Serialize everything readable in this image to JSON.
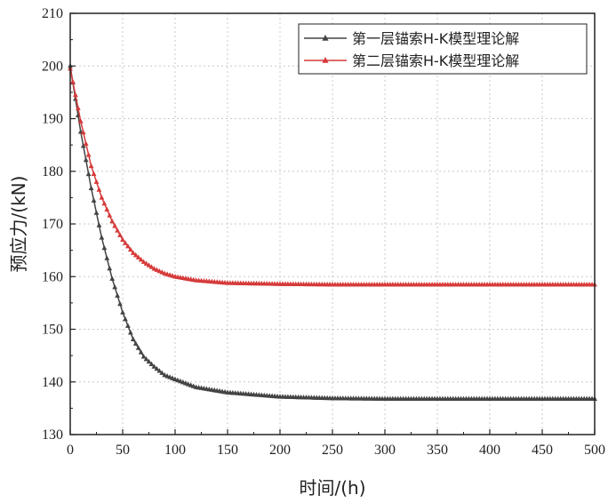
{
  "chart_data": {
    "type": "line",
    "xlabel": "时间/(h)",
    "ylabel": "预应力/(kN)",
    "xlim": [
      0,
      500
    ],
    "ylim": [
      130,
      210
    ],
    "xticks": [
      0,
      50,
      100,
      150,
      200,
      250,
      300,
      350,
      400,
      450,
      500
    ],
    "yticks": [
      130,
      140,
      150,
      160,
      170,
      180,
      190,
      200,
      210
    ],
    "grid": true,
    "legend_position": "top-right",
    "series": [
      {
        "name": "第一层锚索H-K模型理论解",
        "color": "#444444",
        "marker": "triangle",
        "x": [
          0,
          10,
          20,
          30,
          40,
          50,
          60,
          70,
          80,
          90,
          100,
          120,
          150,
          200,
          250,
          300,
          350,
          400,
          450,
          500
        ],
        "values": [
          200,
          187.5,
          176.8,
          167.4,
          159.6,
          153.2,
          148.1,
          144.8,
          142.9,
          141.3,
          140.5,
          139.0,
          138.0,
          137.2,
          136.9,
          136.8,
          136.8,
          136.8,
          136.8,
          136.8
        ]
      },
      {
        "name": "第二层锚索H-K模型理论解",
        "color": "#d63a3a",
        "marker": "triangle",
        "x": [
          0,
          10,
          20,
          30,
          40,
          50,
          60,
          70,
          80,
          90,
          100,
          120,
          150,
          200,
          250,
          300,
          350,
          400,
          450,
          500
        ],
        "values": [
          199.5,
          189.5,
          181.0,
          175.0,
          170.5,
          167.0,
          164.5,
          162.8,
          161.5,
          160.6,
          160.0,
          159.3,
          158.8,
          158.6,
          158.5,
          158.5,
          158.5,
          158.5,
          158.5,
          158.5
        ]
      }
    ]
  }
}
